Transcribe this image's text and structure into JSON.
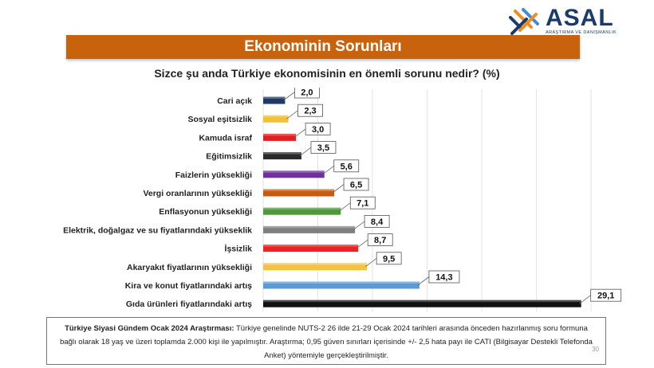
{
  "logo": {
    "name": "ASAL",
    "subtitle": "ARAŞTIRMA VE DANIŞMANLIK",
    "colors": [
      "#f28c1e",
      "#1b3a6b",
      "#3a8dd6"
    ]
  },
  "title": "Ekonominin Sorunları",
  "question": "Sizce şu anda Türkiye ekonomisinin en önemli sorunu nedir? (%)",
  "chart_data": {
    "type": "bar",
    "orientation": "horizontal",
    "title": "Sizce şu anda Türkiye ekonomisinin en önemli sorunu nedir? (%)",
    "categories": [
      "Cari açık",
      "Sosyal eşitsizlik",
      "Kamuda israf",
      "Eğitimsizlik",
      "Faizlerin yüksekliği",
      "Vergi oranlarının yüksekliği",
      "Enflasyonun yüksekliği",
      "Elektrik, doğalgaz ve su fiyatlarındaki yükseklik",
      "İşsizlik",
      "Akaryakıt fiyatlarının yüksekliği",
      "Kira ve konut fiyatlarındaki artış",
      "Gıda ürünleri fiyatlarındaki artış"
    ],
    "values": [
      2.0,
      2.3,
      3.0,
      3.5,
      5.6,
      6.5,
      7.1,
      8.4,
      8.7,
      9.5,
      14.3,
      29.1
    ],
    "value_labels": [
      "2,0",
      "2,3",
      "3,0",
      "3,5",
      "5,6",
      "6,5",
      "7,1",
      "8,4",
      "8,7",
      "9,5",
      "14,3",
      "29,1"
    ],
    "colors": [
      "#1f3864",
      "#f2c12e",
      "#e02020",
      "#2b2b2b",
      "#7030a0",
      "#c55a11",
      "#4e9a3a",
      "#7f7f7f",
      "#ee2222",
      "#f5c242",
      "#5b9bd5",
      "#111111"
    ],
    "xlim": [
      0,
      30
    ],
    "grid": true,
    "legend": "none"
  },
  "note": {
    "bold": "Türkiye Siyasi Gündem Ocak 2024 Araştırması:",
    "text": " Türkiye genelinde NUTS-2 26 ilde 21-29 Ocak 2024 tarihleri arasında önceden hazırlanmış soru formuna bağlı olarak 18 yaş ve üzeri toplamda 2.000 kişi ile yapılmıştır. Araştırma; 0,95 güven sınırları içerisinde +/- 2,5 hata payı ile CATI (Bilgisayar Destekli Telefonda Anket) yöntemiyle gerçekleştirilmiştir."
  },
  "page_number": "30"
}
